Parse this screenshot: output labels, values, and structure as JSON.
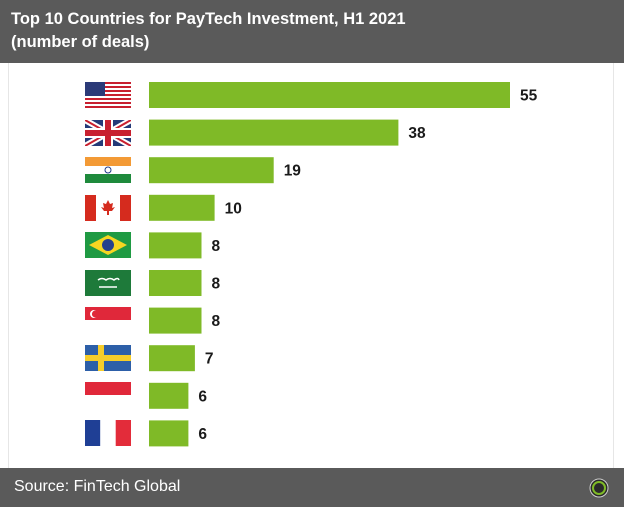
{
  "header": {
    "title_line1": "Top 10 Countries for PayTech Investment, H1 2021",
    "title_line2": "(number of deals)"
  },
  "footer": {
    "source": "Source: FinTech Global"
  },
  "colors": {
    "bar": "#7fba27",
    "header_bg": "#5a5a5a",
    "label": "#1a1a1a"
  },
  "chart_data": {
    "type": "bar",
    "orientation": "horizontal",
    "categories": [
      "United States",
      "United Kingdom",
      "India",
      "Canada",
      "Brazil",
      "Saudi Arabia",
      "Singapore",
      "Sweden",
      "Indonesia",
      "France"
    ],
    "category_icons": [
      "flag-us-icon",
      "flag-uk-icon",
      "flag-india-icon",
      "flag-canada-icon",
      "flag-brazil-icon",
      "flag-saudi-arabia-icon",
      "flag-singapore-icon",
      "flag-sweden-icon",
      "flag-indonesia-icon",
      "flag-france-icon"
    ],
    "values": [
      55,
      38,
      19,
      10,
      8,
      8,
      8,
      7,
      6,
      6
    ],
    "data_labels": [
      "55",
      "38",
      "19",
      "10",
      "8",
      "8",
      "8",
      "7",
      "6",
      "6"
    ],
    "title": "Top 10 Countries for PayTech Investment, H1 2021",
    "subtitle": "(number of deals)",
    "xlabel": "",
    "ylabel": "",
    "grid": false,
    "legend": "none"
  }
}
